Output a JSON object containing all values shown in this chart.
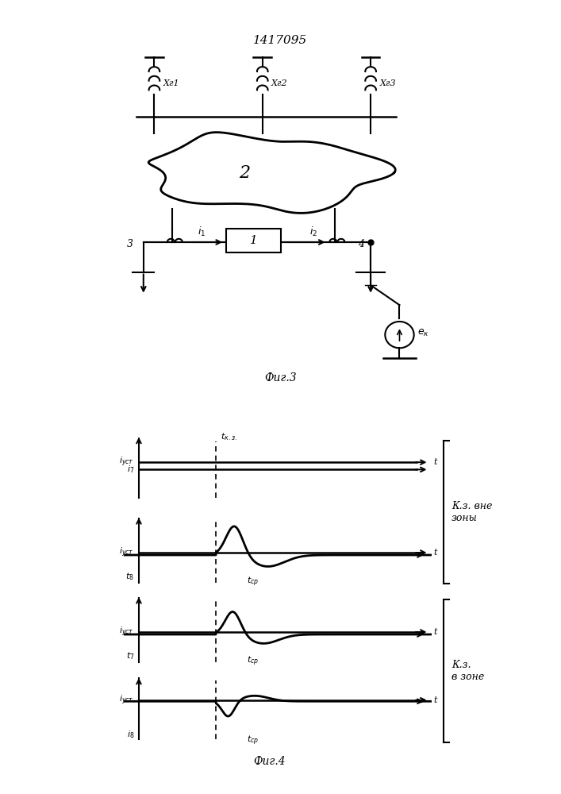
{
  "title": "1417095",
  "fig3_label": "Фиг.3",
  "fig4_label": "Фиг.4",
  "kz_vne_zony": "К.з. вне\nзоны",
  "kz_v_zone": "К.з.\nв зоне",
  "bg_color": "#ffffff",
  "line_color": "#000000"
}
